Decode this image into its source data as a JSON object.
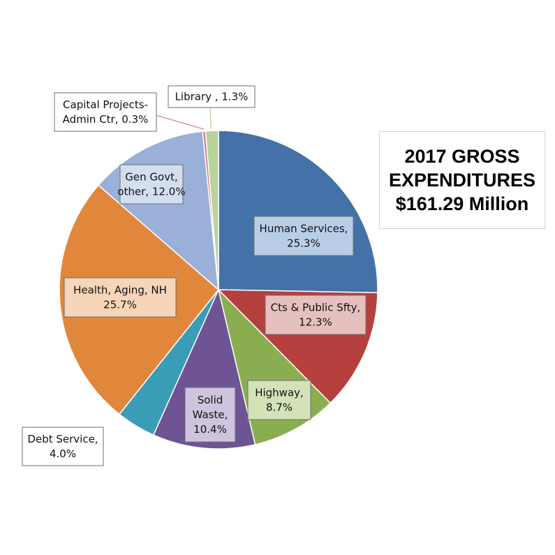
{
  "chart_data": {
    "type": "pie",
    "title_lines": [
      "2017 GROSS",
      "EXPENDITURES",
      "$161.29 Million"
    ],
    "slices": [
      {
        "label_lines": [
          "Human Services,",
          "25.3%"
        ],
        "value": 25.3,
        "color": "#4472a8",
        "label_fill": "#b9cde6"
      },
      {
        "label_lines": [
          "Cts & Public Sfty,",
          "12.3%"
        ],
        "value": 12.3,
        "color": "#b5403d",
        "label_fill": "#e6c0bf"
      },
      {
        "label_lines": [
          "Highway,",
          "8.7%"
        ],
        "value": 8.7,
        "color": "#8aae4f",
        "label_fill": "#d3e2b8"
      },
      {
        "label_lines": [
          "Solid",
          "Waste,",
          "10.4%"
        ],
        "value": 10.4,
        "color": "#6f5495",
        "label_fill": "#cfc4dd"
      },
      {
        "label_lines": [
          "Debt Service,",
          "4.0%"
        ],
        "value": 4.0,
        "color": "#3a9cb6",
        "label_fill": "#ffffff"
      },
      {
        "label_lines": [
          "Health, Aging, NH",
          "25.7%"
        ],
        "value": 25.7,
        "color": "#e1873c",
        "label_fill": "#f6d5b8"
      },
      {
        "label_lines": [
          "Gen Govt,",
          "other, 12.0%"
        ],
        "value": 12.0,
        "color": "#9bb0d8",
        "label_fill": "#d3def0"
      },
      {
        "label_lines": [
          "Capital Projects-",
          "Admin Ctr, 0.3%"
        ],
        "value": 0.3,
        "color": "#d9818f",
        "label_fill": "#ffffff"
      },
      {
        "label_lines": [
          "Library , 1.3%"
        ],
        "value": 1.3,
        "color": "#b8d49a",
        "label_fill": "#ffffff"
      }
    ]
  }
}
